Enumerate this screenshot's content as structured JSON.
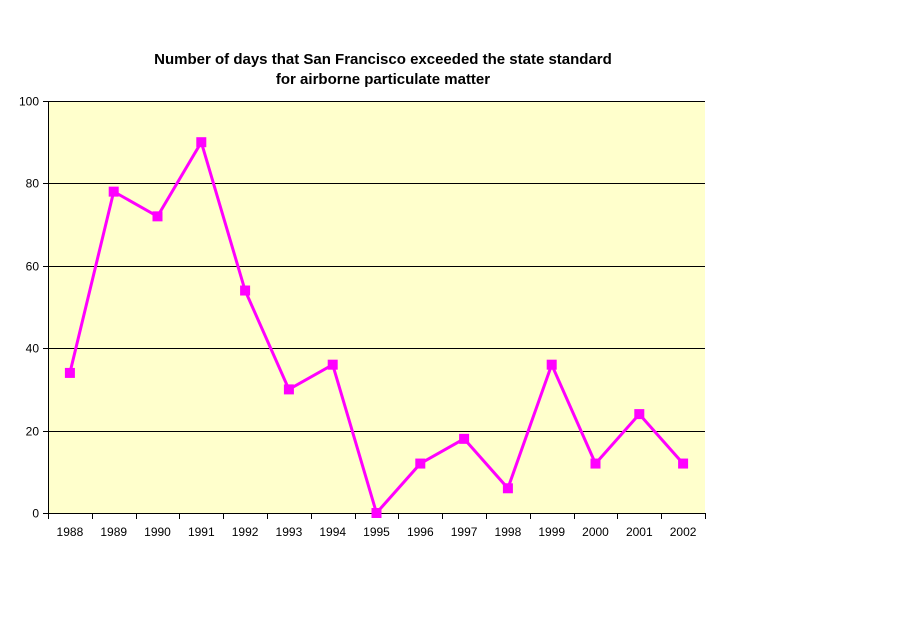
{
  "chart_data": {
    "type": "line",
    "title_lines": [
      "Number of days that San Francisco exceeded the state standard",
      "for airborne particulate matter"
    ],
    "categories": [
      "1988",
      "1989",
      "1990",
      "1991",
      "1992",
      "1993",
      "1994",
      "1995",
      "1996",
      "1997",
      "1998",
      "1999",
      "2000",
      "2001",
      "2002"
    ],
    "series": [
      {
        "values": [
          34,
          78,
          72,
          90,
          54,
          30,
          36,
          0,
          12,
          18,
          6,
          36,
          12,
          24,
          12
        ],
        "color": "#FF00FF"
      }
    ],
    "ylim": [
      0,
      100
    ],
    "yticks": [
      0,
      20,
      40,
      60,
      80,
      100
    ],
    "grid": true,
    "legend": "none",
    "plot_background": "#FFFFCC",
    "marker": "square"
  }
}
